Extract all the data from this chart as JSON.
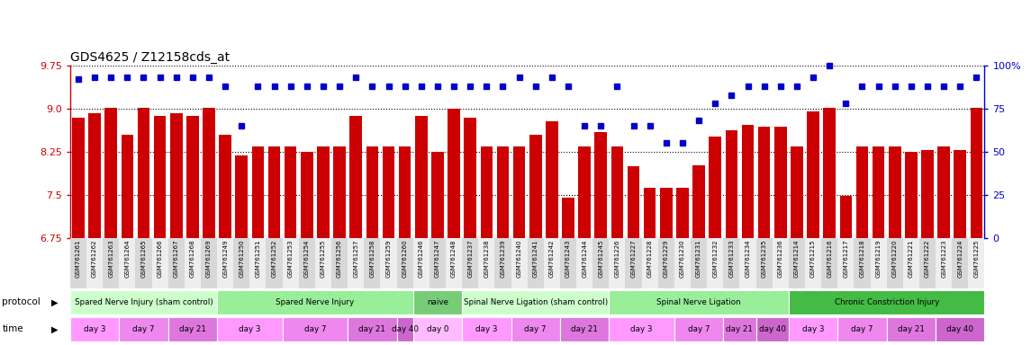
{
  "title": "GDS4625 / Z12158cds_at",
  "samples": [
    "GSM761261",
    "GSM761262",
    "GSM761263",
    "GSM761264",
    "GSM761265",
    "GSM761266",
    "GSM761267",
    "GSM761268",
    "GSM761269",
    "GSM761249",
    "GSM761250",
    "GSM761251",
    "GSM761252",
    "GSM761253",
    "GSM761254",
    "GSM761255",
    "GSM761256",
    "GSM761257",
    "GSM761258",
    "GSM761259",
    "GSM761260",
    "GSM761246",
    "GSM761247",
    "GSM761248",
    "GSM761237",
    "GSM761238",
    "GSM761239",
    "GSM761240",
    "GSM761241",
    "GSM761242",
    "GSM761243",
    "GSM761244",
    "GSM761245",
    "GSM761226",
    "GSM761227",
    "GSM761228",
    "GSM761229",
    "GSM761230",
    "GSM761231",
    "GSM761232",
    "GSM761233",
    "GSM761234",
    "GSM761235",
    "GSM761236",
    "GSM761214",
    "GSM761215",
    "GSM761216",
    "GSM761217",
    "GSM761218",
    "GSM761219",
    "GSM761220",
    "GSM761221",
    "GSM761222",
    "GSM761223",
    "GSM761224",
    "GSM761225"
  ],
  "bar_values": [
    8.85,
    8.92,
    9.02,
    8.55,
    9.02,
    8.88,
    8.92,
    8.88,
    9.02,
    8.55,
    8.18,
    8.35,
    8.35,
    8.35,
    8.25,
    8.35,
    8.35,
    8.88,
    8.35,
    8.35,
    8.35,
    8.88,
    8.25,
    9.0,
    8.85,
    8.35,
    8.35,
    8.35,
    8.55,
    8.78,
    7.45,
    8.35,
    8.6,
    8.35,
    8.0,
    7.62,
    7.62,
    7.62,
    8.02,
    8.52,
    8.62,
    8.72,
    8.68,
    8.68,
    8.35,
    8.95,
    9.02,
    7.48,
    8.35,
    8.35,
    8.35,
    8.25,
    8.28,
    8.35,
    8.28,
    9.02
  ],
  "percentile_values": [
    92,
    93,
    93,
    93,
    93,
    93,
    93,
    93,
    93,
    88,
    65,
    88,
    88,
    88,
    88,
    88,
    88,
    93,
    88,
    88,
    88,
    88,
    88,
    88,
    88,
    88,
    88,
    93,
    88,
    93,
    88,
    65,
    65,
    88,
    65,
    65,
    55,
    55,
    68,
    78,
    83,
    88,
    88,
    88,
    88,
    93,
    100,
    78,
    88,
    88,
    88,
    88,
    88,
    88,
    88,
    93
  ],
  "y_min": 6.75,
  "y_max": 9.75,
  "yticks_left": [
    6.75,
    7.5,
    8.25,
    9.0,
    9.75
  ],
  "yticks_right": [
    0,
    25,
    50,
    75,
    100
  ],
  "bar_color": "#cc0000",
  "dot_color": "#0000cc",
  "protocol_groups": [
    {
      "label": "Spared Nerve Injury (sham control)",
      "start": 0,
      "end": 9,
      "color": "#ccffcc"
    },
    {
      "label": "Spared Nerve Injury",
      "start": 9,
      "end": 21,
      "color": "#99ee99"
    },
    {
      "label": "naive",
      "start": 21,
      "end": 24,
      "color": "#77cc77"
    },
    {
      "label": "Spinal Nerve Ligation (sham control)",
      "start": 24,
      "end": 33,
      "color": "#ccffcc"
    },
    {
      "label": "Spinal Nerve Ligation",
      "start": 33,
      "end": 44,
      "color": "#99ee99"
    },
    {
      "label": "Chronic Constriction Injury",
      "start": 44,
      "end": 56,
      "color": "#44bb44"
    }
  ],
  "time_groups": [
    {
      "label": "day 3",
      "start": 0,
      "end": 3,
      "color": "#ff99ff"
    },
    {
      "label": "day 7",
      "start": 3,
      "end": 6,
      "color": "#ee88ee"
    },
    {
      "label": "day 21",
      "start": 6,
      "end": 9,
      "color": "#dd77dd"
    },
    {
      "label": "day 3",
      "start": 9,
      "end": 13,
      "color": "#ff99ff"
    },
    {
      "label": "day 7",
      "start": 13,
      "end": 17,
      "color": "#ee88ee"
    },
    {
      "label": "day 21",
      "start": 17,
      "end": 20,
      "color": "#dd77dd"
    },
    {
      "label": "day 40",
      "start": 20,
      "end": 21,
      "color": "#cc66cc"
    },
    {
      "label": "day 0",
      "start": 21,
      "end": 24,
      "color": "#ffbbff"
    },
    {
      "label": "day 3",
      "start": 24,
      "end": 27,
      "color": "#ff99ff"
    },
    {
      "label": "day 7",
      "start": 27,
      "end": 30,
      "color": "#ee88ee"
    },
    {
      "label": "day 21",
      "start": 30,
      "end": 33,
      "color": "#dd77dd"
    },
    {
      "label": "day 3",
      "start": 33,
      "end": 37,
      "color": "#ff99ff"
    },
    {
      "label": "day 7",
      "start": 37,
      "end": 40,
      "color": "#ee88ee"
    },
    {
      "label": "day 21",
      "start": 40,
      "end": 42,
      "color": "#dd77dd"
    },
    {
      "label": "day 40",
      "start": 42,
      "end": 44,
      "color": "#cc66cc"
    },
    {
      "label": "day 3",
      "start": 44,
      "end": 47,
      "color": "#ff99ff"
    },
    {
      "label": "day 7",
      "start": 47,
      "end": 50,
      "color": "#ee88ee"
    },
    {
      "label": "day 21",
      "start": 50,
      "end": 53,
      "color": "#dd77dd"
    },
    {
      "label": "day 40",
      "start": 53,
      "end": 56,
      "color": "#cc66cc"
    }
  ]
}
